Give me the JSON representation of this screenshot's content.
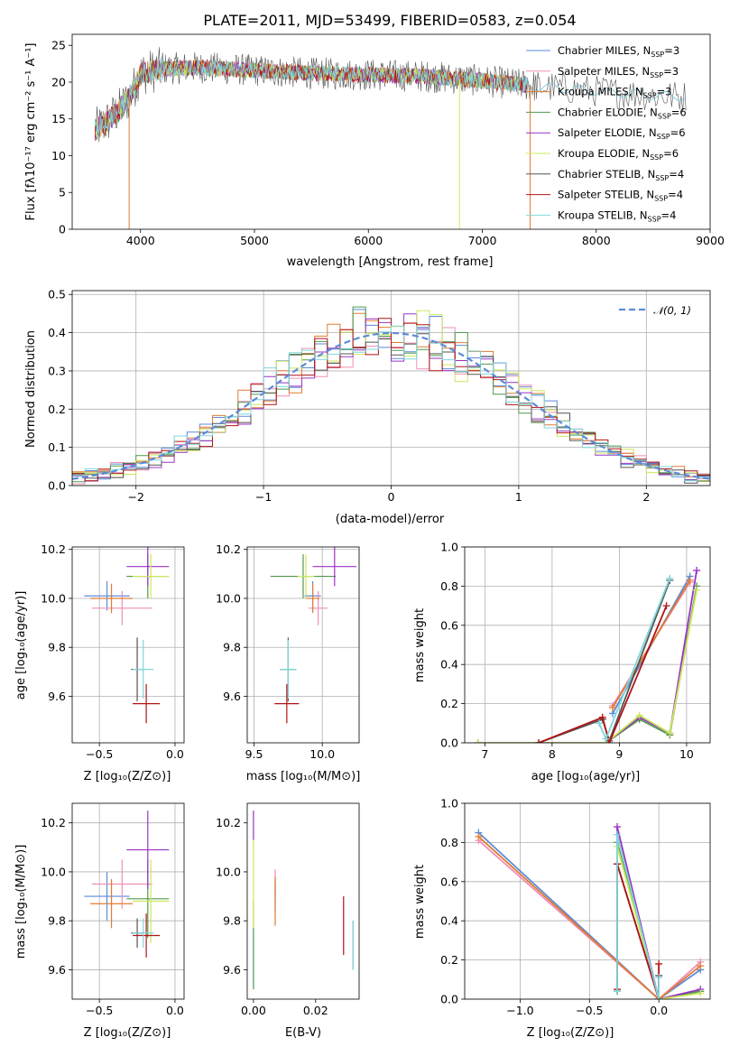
{
  "colors": {
    "Chabrier MILES": "#5b8bd9",
    "Salpeter MILES": "#ef8fb8",
    "Kroupa MILES": "#e07b32",
    "Chabrier ELODIE": "#4f9a4f",
    "Salpeter ELODIE": "#9a33c4",
    "Kroupa ELODIE": "#cde85a",
    "Chabrier STELIB": "#555555",
    "Salpeter STELIB": "#b01515",
    "Kroupa STELIB": "#7fd6dc"
  },
  "chart_data": [
    {
      "id": "spectrum",
      "type": "line",
      "title": "PLATE=2011, MJD=53499, FIBERID=0583, z=0.054",
      "xlabel": "wavelength [Angstrom, rest frame]",
      "ylabel": "Flux [fλ10⁻¹⁷ erg cm⁻² s⁻¹ A⁻¹]",
      "xlim": [
        3400,
        9000
      ],
      "ylim": [
        0,
        26.5
      ],
      "xticks": [
        "4000",
        "5000",
        "6000",
        "7000",
        "8000",
        "9000"
      ],
      "yticks": [
        "0",
        "5",
        "10",
        "15",
        "20",
        "25"
      ],
      "grid": false,
      "legend_position": "top-right",
      "legend": [
        "Chabrier MILES, NSSP=3",
        "Salpeter MILES, NSSP=3",
        "Kroupa MILES, NSSP=3",
        "Chabrier ELODIE, NSSP=6",
        "Salpeter ELODIE, NSSP=6",
        "Kroupa ELODIE, NSSP=6",
        "Chabrier STELIB, NSSP=4",
        "Salpeter STELIB, NSSP=4",
        "Kroupa STELIB, NSSP=4"
      ],
      "continuum": [
        [
          3600,
          13.5
        ],
        [
          3700,
          14.5
        ],
        [
          3800,
          16.0
        ],
        [
          3900,
          17.8
        ],
        [
          4000,
          21.2
        ],
        [
          4200,
          21.8
        ],
        [
          4500,
          22.0
        ],
        [
          5000,
          21.6
        ],
        [
          5500,
          21.2
        ],
        [
          6000,
          21.0
        ],
        [
          6500,
          20.8
        ],
        [
          7000,
          20.2
        ],
        [
          7500,
          19.4
        ],
        [
          8000,
          18.8
        ],
        [
          8500,
          18.2
        ],
        [
          8800,
          18.0
        ]
      ],
      "spikes": [
        [
          3900,
          0
        ],
        [
          6800,
          0
        ],
        [
          7420,
          0
        ]
      ]
    },
    {
      "id": "residuals",
      "type": "line",
      "xlabel": "(data-model)/error",
      "ylabel": "Normed distribution",
      "xlim": [
        -2.5,
        2.5
      ],
      "ylim": [
        0,
        0.51
      ],
      "xticks": [
        "−2",
        "−1",
        "0",
        "1",
        "2"
      ],
      "yticks": [
        "0.0",
        "0.1",
        "0.2",
        "0.3",
        "0.4",
        "0.5"
      ],
      "grid": true,
      "legend_position": "top-right",
      "legend": [
        "𝒩(0, 1)"
      ]
    },
    {
      "id": "age-vs-Z",
      "type": "scatter",
      "xlabel": "Z [log₁₀(Z/Z⊙)]",
      "ylabel": "age  [log₁₀(age/yr)]",
      "xlim": [
        -0.68,
        0.06
      ],
      "ylim": [
        9.41,
        10.21
      ],
      "xticks": [
        "−0.5",
        "0.0"
      ],
      "yticks": [
        "9.6",
        "9.8",
        "10.0",
        "10.2"
      ],
      "grid": true,
      "points": [
        {
          "model": "Chabrier MILES",
          "x": -0.45,
          "xerr": 0.15,
          "y": 10.01,
          "yerr": 0.06
        },
        {
          "model": "Salpeter MILES",
          "x": -0.35,
          "xerr": 0.2,
          "y": 9.96,
          "yerr": 0.07
        },
        {
          "model": "Kroupa MILES",
          "x": -0.42,
          "xerr": 0.14,
          "y": 10.0,
          "yerr": 0.06
        },
        {
          "model": "Chabrier ELODIE",
          "x": -0.18,
          "xerr": 0.14,
          "y": 10.09,
          "yerr": 0.09
        },
        {
          "model": "Salpeter ELODIE",
          "x": -0.18,
          "xerr": 0.14,
          "y": 10.13,
          "yerr": 0.08
        },
        {
          "model": "Kroupa ELODIE",
          "x": -0.16,
          "xerr": 0.12,
          "y": 10.09,
          "yerr": 0.09
        },
        {
          "model": "Chabrier STELIB",
          "x": -0.25,
          "xerr": 0.04,
          "y": 9.71,
          "yerr": 0.13
        },
        {
          "model": "Salpeter STELIB",
          "x": -0.19,
          "xerr": 0.09,
          "y": 9.57,
          "yerr": 0.08
        },
        {
          "model": "Kroupa STELIB",
          "x": -0.21,
          "xerr": 0.07,
          "y": 9.71,
          "yerr": 0.12
        }
      ]
    },
    {
      "id": "age-vs-mass",
      "type": "scatter",
      "xlabel": "mass [log₁₀(M/M⊙)]",
      "ylabel": "",
      "xlim": [
        9.45,
        10.27
      ],
      "ylim": [
        9.41,
        10.21
      ],
      "xticks": [
        "9.5",
        "10.0"
      ],
      "yticks": [
        "9.6",
        "9.8",
        "10.0",
        "10.2"
      ],
      "grid": true,
      "points": [
        {
          "model": "Chabrier MILES",
          "x": 9.93,
          "xerr": 0.06,
          "y": 10.01,
          "yerr": 0.06
        },
        {
          "model": "Salpeter MILES",
          "x": 9.97,
          "xerr": 0.07,
          "y": 9.96,
          "yerr": 0.07
        },
        {
          "model": "Kroupa MILES",
          "x": 9.93,
          "xerr": 0.05,
          "y": 10.0,
          "yerr": 0.06
        },
        {
          "model": "Chabrier ELODIE",
          "x": 9.86,
          "xerr": 0.24,
          "y": 10.09,
          "yerr": 0.09
        },
        {
          "model": "Salpeter ELODIE",
          "x": 10.09,
          "xerr": 0.16,
          "y": 10.13,
          "yerr": 0.08
        },
        {
          "model": "Kroupa ELODIE",
          "x": 9.88,
          "xerr": 0.06,
          "y": 10.09,
          "yerr": 0.09
        },
        {
          "model": "Chabrier STELIB",
          "x": 9.75,
          "xerr": 0.06,
          "y": 9.71,
          "yerr": 0.13
        },
        {
          "model": "Salpeter STELIB",
          "x": 9.74,
          "xerr": 0.09,
          "y": 9.57,
          "yerr": 0.08
        },
        {
          "model": "Kroupa STELIB",
          "x": 9.75,
          "xerr": 0.06,
          "y": 9.71,
          "yerr": 0.12
        }
      ]
    },
    {
      "id": "weight-vs-age",
      "type": "line",
      "xlabel": "age  [log₁₀(age/yr)]",
      "ylabel": "mass weight",
      "xlim": [
        6.7,
        10.35
      ],
      "ylim": [
        0,
        1.0
      ],
      "xticks": [
        "7",
        "8",
        "9",
        "10"
      ],
      "yticks": [
        "0.0",
        "0.2",
        "0.4",
        "0.6",
        "0.8",
        "1.0"
      ],
      "grid": true,
      "series": [
        {
          "model": "Chabrier MILES",
          "x": [
            8.9,
            10.05
          ],
          "y": [
            0.15,
            0.85
          ]
        },
        {
          "model": "Salpeter MILES",
          "x": [
            8.9,
            10.05
          ],
          "y": [
            0.19,
            0.82
          ]
        },
        {
          "model": "Kroupa MILES",
          "x": [
            8.9,
            10.05
          ],
          "y": [
            0.18,
            0.83
          ]
        },
        {
          "model": "Chabrier ELODIE",
          "x": [
            6.9,
            8.8,
            9.3,
            9.75,
            10.15
          ],
          "y": [
            0.0,
            0.0,
            0.12,
            0.04,
            0.8
          ]
        },
        {
          "model": "Salpeter ELODIE",
          "x": [
            6.9,
            8.8,
            9.3,
            9.75,
            10.15
          ],
          "y": [
            0.0,
            0.0,
            0.13,
            0.05,
            0.88
          ]
        },
        {
          "model": "Kroupa ELODIE",
          "x": [
            6.9,
            8.8,
            9.3,
            9.75,
            10.15
          ],
          "y": [
            0.0,
            0.0,
            0.14,
            0.05,
            0.78
          ]
        },
        {
          "model": "Chabrier STELIB",
          "x": [
            7.8,
            8.75,
            8.85,
            9.75
          ],
          "y": [
            0.0,
            0.12,
            0.01,
            0.83
          ]
        },
        {
          "model": "Salpeter STELIB",
          "x": [
            7.8,
            8.75,
            8.85,
            9.7
          ],
          "y": [
            0.0,
            0.13,
            0.0,
            0.7
          ]
        },
        {
          "model": "Kroupa STELIB",
          "x": [
            8.7,
            8.8,
            9.75
          ],
          "y": [
            0.1,
            0.02,
            0.84
          ]
        }
      ]
    },
    {
      "id": "mass-vs-Z",
      "type": "scatter",
      "xlabel": "Z [log₁₀(Z/Z⊙)]",
      "ylabel": "mass [log₁₀(M/M⊙)]",
      "xlim": [
        -0.68,
        0.06
      ],
      "ylim": [
        9.48,
        10.28
      ],
      "xticks": [
        "−0.5",
        "0.0"
      ],
      "yticks": [
        "9.6",
        "9.8",
        "10.0",
        "10.2"
      ],
      "grid": true,
      "points": [
        {
          "model": "Chabrier MILES",
          "x": -0.45,
          "xerr": 0.15,
          "y": 9.9,
          "yerr": 0.1
        },
        {
          "model": "Salpeter MILES",
          "x": -0.35,
          "xerr": 0.2,
          "y": 9.95,
          "yerr": 0.1
        },
        {
          "model": "Kroupa MILES",
          "x": -0.42,
          "xerr": 0.14,
          "y": 9.87,
          "yerr": 0.1
        },
        {
          "model": "Chabrier ELODIE",
          "x": -0.18,
          "xerr": 0.14,
          "y": 9.89,
          "yerr": 0.16
        },
        {
          "model": "Salpeter ELODIE",
          "x": -0.18,
          "xerr": 0.14,
          "y": 10.09,
          "yerr": 0.16
        },
        {
          "model": "Kroupa ELODIE",
          "x": -0.16,
          "xerr": 0.12,
          "y": 9.88,
          "yerr": 0.17
        },
        {
          "model": "Chabrier STELIB",
          "x": -0.25,
          "xerr": 0.04,
          "y": 9.75,
          "yerr": 0.06
        },
        {
          "model": "Salpeter STELIB",
          "x": -0.19,
          "xerr": 0.09,
          "y": 9.74,
          "yerr": 0.09
        },
        {
          "model": "Kroupa STELIB",
          "x": -0.21,
          "xerr": 0.07,
          "y": 9.75,
          "yerr": 0.06
        }
      ]
    },
    {
      "id": "mass-vs-EBV",
      "type": "scatter",
      "xlabel": "E(B-V)",
      "ylabel": "",
      "xlim": [
        -0.002,
        0.034
      ],
      "ylim": [
        9.48,
        10.28
      ],
      "xticks": [
        "0.00",
        "0.02"
      ],
      "yticks": [
        "9.6",
        "9.8",
        "10.0",
        "10.2"
      ],
      "grid": false,
      "points": [
        {
          "model": "Chabrier MILES",
          "x": 0.007,
          "y": 9.9,
          "yerr": 0.06
        },
        {
          "model": "Salpeter MILES",
          "x": 0.007,
          "y": 9.95,
          "yerr": 0.06
        },
        {
          "model": "Kroupa MILES",
          "x": 0.007,
          "y": 9.88,
          "yerr": 0.1
        },
        {
          "model": "Chabrier ELODIE",
          "x": 0.0,
          "y": 9.7,
          "yerr": 0.18
        },
        {
          "model": "Salpeter ELODIE",
          "x": 0.0,
          "y": 10.19,
          "yerr": 0.06
        },
        {
          "model": "Kroupa ELODIE",
          "x": 0.0,
          "y": 9.95,
          "yerr": 0.18
        },
        {
          "model": "Chabrier STELIB",
          "x": 0.032,
          "y": 9.7,
          "yerr": 0.1
        },
        {
          "model": "Salpeter STELIB",
          "x": 0.029,
          "y": 9.78,
          "yerr": 0.12
        },
        {
          "model": "Kroupa STELIB",
          "x": 0.032,
          "y": 9.7,
          "yerr": 0.1
        }
      ]
    },
    {
      "id": "weight-vs-Z",
      "type": "line",
      "xlabel": "Z [log₁₀(Z/Z⊙)]",
      "ylabel": "mass weight",
      "xlim": [
        -1.4,
        0.37
      ],
      "ylim": [
        0,
        1.0
      ],
      "xticks": [
        "−1.0",
        "−0.5",
        "0.0"
      ],
      "yticks": [
        "0.0",
        "0.2",
        "0.4",
        "0.6",
        "0.8",
        "1.0"
      ],
      "grid": true,
      "series": [
        {
          "model": "Chabrier MILES",
          "x": [
            -1.3,
            0.0,
            0.3
          ],
          "y": [
            0.85,
            0.0,
            0.15
          ]
        },
        {
          "model": "Salpeter MILES",
          "x": [
            -1.3,
            0.0,
            0.3
          ],
          "y": [
            0.81,
            0.0,
            0.19
          ]
        },
        {
          "model": "Kroupa MILES",
          "x": [
            -1.3,
            0.0,
            0.3
          ],
          "y": [
            0.83,
            0.0,
            0.17
          ]
        },
        {
          "model": "Chabrier ELODIE",
          "x": [
            -0.3,
            -0.3,
            0.0,
            0.3
          ],
          "y": [
            0.04,
            0.8,
            0.0,
            0.04
          ]
        },
        {
          "model": "Salpeter ELODIE",
          "x": [
            -0.3,
            -0.3,
            0.0,
            0.3
          ],
          "y": [
            0.05,
            0.88,
            0.0,
            0.05
          ]
        },
        {
          "model": "Kroupa ELODIE",
          "x": [
            -0.3,
            -0.3,
            0.0,
            0.3
          ],
          "y": [
            0.05,
            0.78,
            0.0,
            0.03
          ]
        },
        {
          "model": "Chabrier STELIB",
          "x": [
            -0.3,
            -0.3,
            0.0,
            0.0
          ],
          "y": [
            0.04,
            0.69,
            0.0,
            0.12
          ]
        },
        {
          "model": "Salpeter STELIB",
          "x": [
            -0.3,
            -0.3,
            0.0,
            0.0
          ],
          "y": [
            0.05,
            0.69,
            0.0,
            0.18
          ]
        },
        {
          "model": "Kroupa STELIB",
          "x": [
            -0.3,
            -0.3,
            0.0,
            0.0
          ],
          "y": [
            0.04,
            0.84,
            0.0,
            0.11
          ]
        }
      ]
    }
  ]
}
